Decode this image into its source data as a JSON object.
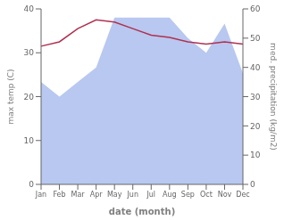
{
  "chart_data": {
    "type": "combo",
    "categories": [
      "Jan",
      "Feb",
      "Mar",
      "Apr",
      "May",
      "Jun",
      "Jul",
      "Aug",
      "Sep",
      "Oct",
      "Nov",
      "Dec"
    ],
    "series": [
      {
        "type": "area",
        "axis": "y2",
        "color": "#b8c8f0",
        "values": [
          35,
          30,
          35,
          40,
          57,
          57,
          57,
          57,
          50,
          45,
          55,
          38
        ]
      },
      {
        "type": "line",
        "color": "#b03050",
        "values": [
          31.5,
          32.5,
          35.5,
          37.5,
          37.0,
          35.5,
          34.0,
          33.5,
          32.5,
          32.0,
          32.5,
          32.0
        ]
      }
    ],
    "xlabel": "date (month)",
    "ylabel": "max temp (C)",
    "y2label": "med. precipitation (kg/m2)",
    "ylim": [
      0,
      40
    ],
    "yticks": [
      0,
      10,
      20,
      30,
      40
    ],
    "y2lim": [
      0,
      60
    ],
    "y2ticks": [
      0,
      10,
      20,
      30,
      40,
      50,
      60
    ],
    "grid": false
  }
}
